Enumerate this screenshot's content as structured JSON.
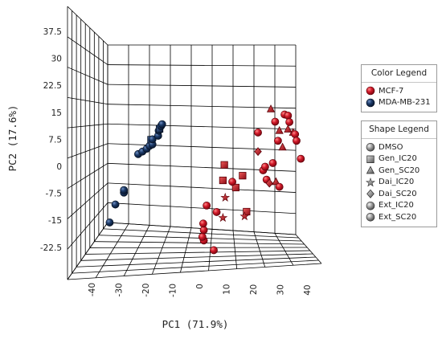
{
  "chart_data": {
    "type": "scatter-3d",
    "xlabel": "PC1 (71.9%)",
    "ylabel": "PC2 (17.6%)",
    "x_ticks": [
      "-40",
      "-30",
      "-20",
      "-10",
      "0",
      "10",
      "20",
      "30",
      "40"
    ],
    "y_ticks": [
      "37.5",
      "30",
      "22.5",
      "15",
      "7.5",
      "0",
      "-7.5",
      "-15",
      "-22.5"
    ],
    "color_legend": {
      "title": "Color Legend",
      "items": [
        {
          "label": "MCF-7",
          "color": "#c8102e"
        },
        {
          "label": "MDA-MB-231",
          "color": "#14305a"
        }
      ]
    },
    "shape_legend": {
      "title": "Shape Legend",
      "items": [
        {
          "label": "DMSO",
          "shape": "sphere"
        },
        {
          "label": "Gen_IC20",
          "shape": "square"
        },
        {
          "label": "Gen_SC20",
          "shape": "triangle"
        },
        {
          "label": "Dai_IC20",
          "shape": "star"
        },
        {
          "label": "Dai_SC20",
          "shape": "diamond"
        },
        {
          "label": "Ext_IC20",
          "shape": "sphere"
        },
        {
          "label": "Ext_SC20",
          "shape": "sphere"
        }
      ]
    },
    "points": [
      {
        "group": "MDA-MB-231",
        "shape": "sphere",
        "x": -37,
        "y": -15.5
      },
      {
        "group": "MDA-MB-231",
        "shape": "sphere",
        "x": -35,
        "y": -10.5
      },
      {
        "group": "MDA-MB-231",
        "shape": "sphere",
        "x": -32,
        "y": -7.2
      },
      {
        "group": "MDA-MB-231",
        "shape": "sphere",
        "x": -32,
        "y": -6.5
      },
      {
        "group": "MDA-MB-231",
        "shape": "sphere",
        "x": -27,
        "y": 3.5
      },
      {
        "group": "MDA-MB-231",
        "shape": "sphere",
        "x": -25.5,
        "y": 4.2
      },
      {
        "group": "MDA-MB-231",
        "shape": "sphere",
        "x": -24,
        "y": 5
      },
      {
        "group": "MDA-MB-231",
        "shape": "sphere",
        "x": -23,
        "y": 5.8
      },
      {
        "group": "MDA-MB-231",
        "shape": "square",
        "x": -22.5,
        "y": 7.5
      },
      {
        "group": "MDA-MB-231",
        "shape": "sphere",
        "x": -22,
        "y": 6.2
      },
      {
        "group": "MDA-MB-231",
        "shape": "sphere",
        "x": -22,
        "y": 7.6
      },
      {
        "group": "MDA-MB-231",
        "shape": "sphere",
        "x": -20,
        "y": 8.6
      },
      {
        "group": "MDA-MB-231",
        "shape": "sphere",
        "x": -19.8,
        "y": 10
      },
      {
        "group": "MDA-MB-231",
        "shape": "square",
        "x": -19.5,
        "y": 10.5
      },
      {
        "group": "MDA-MB-231",
        "shape": "sphere",
        "x": -19,
        "y": 11.3
      },
      {
        "group": "MDA-MB-231",
        "shape": "sphere",
        "x": -18.6,
        "y": 11.8
      },
      {
        "group": "MCF-7",
        "shape": "sphere",
        "x": -4,
        "y": -20.5
      },
      {
        "group": "MCF-7",
        "shape": "sphere",
        "x": -4.5,
        "y": -19.5
      },
      {
        "group": "MCF-7",
        "shape": "sphere",
        "x": -4,
        "y": -17.6
      },
      {
        "group": "MCF-7",
        "shape": "sphere",
        "x": -4.2,
        "y": -15.8
      },
      {
        "group": "MCF-7",
        "shape": "sphere",
        "x": -3,
        "y": -10.8
      },
      {
        "group": "MCF-7",
        "shape": "sphere",
        "x": -0.5,
        "y": -23.2
      },
      {
        "group": "MCF-7",
        "shape": "sphere",
        "x": 0.5,
        "y": -12.6
      },
      {
        "group": "MCF-7",
        "shape": "star",
        "x": 2.7,
        "y": -14.2
      },
      {
        "group": "MCF-7",
        "shape": "star",
        "x": 3.5,
        "y": -8.6
      },
      {
        "group": "MCF-7",
        "shape": "square",
        "x": 2.7,
        "y": -3.8
      },
      {
        "group": "MCF-7",
        "shape": "square",
        "x": 3.2,
        "y": 0.5
      },
      {
        "group": "MCF-7",
        "shape": "square",
        "x": 7.2,
        "y": -5.8
      },
      {
        "group": "MCF-7",
        "shape": "sphere",
        "x": 6,
        "y": -4.2
      },
      {
        "group": "MCF-7",
        "shape": "square",
        "x": 9.6,
        "y": -2.5
      },
      {
        "group": "MCF-7",
        "shape": "square",
        "x": 11,
        "y": -12.5
      },
      {
        "group": "MCF-7",
        "shape": "star",
        "x": 10.3,
        "y": -13.8
      },
      {
        "group": "MCF-7",
        "shape": "sphere",
        "x": 15,
        "y": 9.5
      },
      {
        "group": "MCF-7",
        "shape": "diamond",
        "x": 15,
        "y": 4.2
      },
      {
        "group": "MCF-7",
        "shape": "sphere",
        "x": 16.8,
        "y": -1
      },
      {
        "group": "MCF-7",
        "shape": "sphere",
        "x": 17.5,
        "y": 0
      },
      {
        "group": "MCF-7",
        "shape": "sphere",
        "x": 18,
        "y": -3.6
      },
      {
        "group": "MCF-7",
        "shape": "diamond",
        "x": 19,
        "y": -4.6
      },
      {
        "group": "MCF-7",
        "shape": "sphere",
        "x": 20.2,
        "y": 1
      },
      {
        "group": "MCF-7",
        "shape": "triangle",
        "x": 21.3,
        "y": -4.2
      },
      {
        "group": "MCF-7",
        "shape": "sphere",
        "x": 22.5,
        "y": -5.6
      },
      {
        "group": "MCF-7",
        "shape": "triangle",
        "x": 19.5,
        "y": 16
      },
      {
        "group": "MCF-7",
        "shape": "sphere",
        "x": 21,
        "y": 12.5
      },
      {
        "group": "MCF-7",
        "shape": "sphere",
        "x": 22,
        "y": 7.2
      },
      {
        "group": "MCF-7",
        "shape": "triangle",
        "x": 22.5,
        "y": 10
      },
      {
        "group": "MCF-7",
        "shape": "triangle",
        "x": 23.6,
        "y": 5.4
      },
      {
        "group": "MCF-7",
        "shape": "sphere",
        "x": 24.3,
        "y": 14.5
      },
      {
        "group": "MCF-7",
        "shape": "sphere",
        "x": 25.5,
        "y": 14.2
      },
      {
        "group": "MCF-7",
        "shape": "sphere",
        "x": 26,
        "y": 12.4
      },
      {
        "group": "MCF-7",
        "shape": "triangle",
        "x": 25.5,
        "y": 10.4
      },
      {
        "group": "MCF-7",
        "shape": "triangle",
        "x": 27.3,
        "y": 9.5
      },
      {
        "group": "MCF-7",
        "shape": "sphere",
        "x": 28,
        "y": 9
      },
      {
        "group": "MCF-7",
        "shape": "sphere",
        "x": 28.5,
        "y": 7.2
      },
      {
        "group": "MCF-7",
        "shape": "sphere",
        "x": 30,
        "y": 2.2
      }
    ]
  }
}
